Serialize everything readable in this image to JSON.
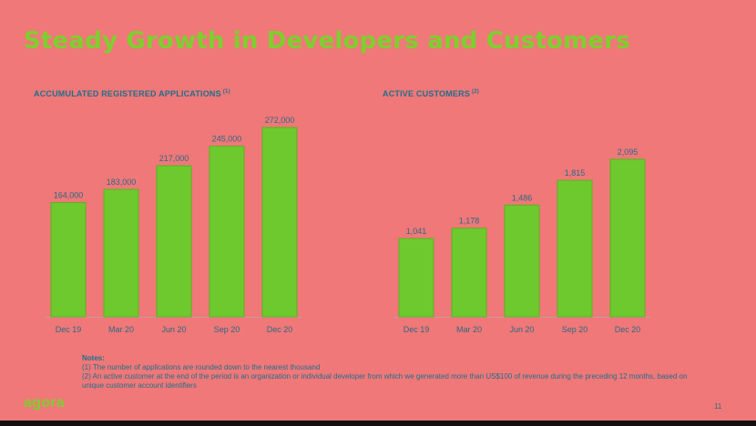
{
  "title": "Steady Growth in Developers and Customers",
  "chart_data": [
    {
      "type": "bar",
      "title": "ACCUMULATED REGISTERED APPLICATIONS",
      "title_note": "(1)",
      "categories": [
        "Dec 19",
        "Mar 20",
        "Jun 20",
        "Sep 20",
        "Dec 20"
      ],
      "values": [
        164000,
        183000,
        217000,
        245000,
        272000
      ],
      "value_labels": [
        "164,000",
        "183,000",
        "217,000",
        "245,000",
        "272,000"
      ],
      "ylim": [
        0,
        272000
      ],
      "grid": false,
      "color": "#6ec92e"
    },
    {
      "type": "bar",
      "title": "ACTIVE CUSTOMERS",
      "title_note": "(2)",
      "categories": [
        "Dec 19",
        "Mar 20",
        "Jun 20",
        "Sep 20",
        "Dec 20"
      ],
      "values": [
        1041,
        1178,
        1486,
        1815,
        2095
      ],
      "value_labels": [
        "1,041",
        "1,178",
        "1,486",
        "1,815",
        "2,095"
      ],
      "ylim": [
        0,
        2095
      ],
      "grid": false,
      "color": "#6ec92e"
    }
  ],
  "notes": {
    "heading": "Notes:",
    "items": [
      "(1) The number of applications are rounded down to the nearest thousand",
      "(2) An active customer at the end of the period is an organization or individual developer from which we generated more than US$100 of revenue during the preceding 12 months, based on unique customer account identifiers"
    ]
  },
  "logo": "agora",
  "page_number": "11"
}
